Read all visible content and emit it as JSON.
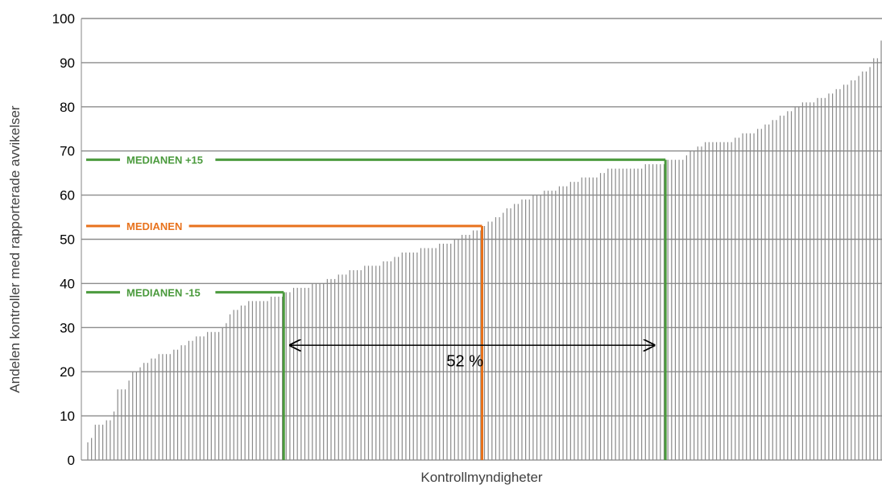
{
  "chart_data": {
    "type": "bar",
    "xlabel": "Kontrollmyndigheter",
    "ylabel": "Andelen kontroller med rapporterade avvikelser",
    "ylim": [
      0,
      100
    ],
    "yticks": [
      0,
      10,
      20,
      30,
      40,
      50,
      60,
      70,
      80,
      90,
      100
    ],
    "grid": true,
    "values": [
      4,
      5,
      8,
      8,
      8,
      9,
      9,
      11,
      16,
      16,
      16,
      18,
      20,
      20,
      21,
      22,
      22,
      23,
      23,
      24,
      24,
      24,
      24,
      25,
      25,
      26,
      26,
      27,
      27,
      28,
      28,
      28,
      29,
      29,
      29,
      29,
      30,
      31,
      33,
      34,
      34,
      35,
      35,
      36,
      36,
      36,
      36,
      36,
      36,
      37,
      37,
      37,
      37,
      38,
      38,
      39,
      39,
      39,
      39,
      39,
      40,
      40,
      40,
      40,
      41,
      41,
      41,
      42,
      42,
      42,
      43,
      43,
      43,
      43,
      44,
      44,
      44,
      44,
      44,
      45,
      45,
      45,
      46,
      46,
      47,
      47,
      47,
      47,
      47,
      48,
      48,
      48,
      48,
      48,
      49,
      49,
      49,
      49,
      50,
      50,
      51,
      51,
      51,
      52,
      52,
      52,
      53,
      54,
      54,
      55,
      55,
      56,
      57,
      57,
      58,
      58,
      59,
      59,
      59,
      60,
      60,
      60,
      61,
      61,
      61,
      61,
      62,
      62,
      62,
      63,
      63,
      63,
      64,
      64,
      64,
      64,
      64,
      65,
      65,
      66,
      66,
      66,
      66,
      66,
      66,
      66,
      66,
      66,
      66,
      67,
      67,
      67,
      67,
      67,
      67,
      68,
      68,
      68,
      68,
      68,
      69,
      70,
      70,
      71,
      71,
      72,
      72,
      72,
      72,
      72,
      72,
      72,
      72,
      73,
      73,
      74,
      74,
      74,
      74,
      75,
      75,
      76,
      76,
      77,
      77,
      78,
      78,
      79,
      79,
      80,
      80,
      81,
      81,
      81,
      81,
      82,
      82,
      82,
      83,
      83,
      84,
      84,
      85,
      85,
      86,
      86,
      87,
      88,
      88,
      89,
      91,
      91,
      95
    ],
    "reference_lines": [
      {
        "label": "MEDIANEN +15",
        "value": 68,
        "color": "#4a9a3c"
      },
      {
        "label": "MEDIANEN",
        "value": 53,
        "color": "#e8721c"
      },
      {
        "label": "MEDIANEN -15",
        "value": 38,
        "color": "#4a9a3c"
      }
    ],
    "span_annotation": {
      "label": "52 %",
      "y": 26
    }
  }
}
